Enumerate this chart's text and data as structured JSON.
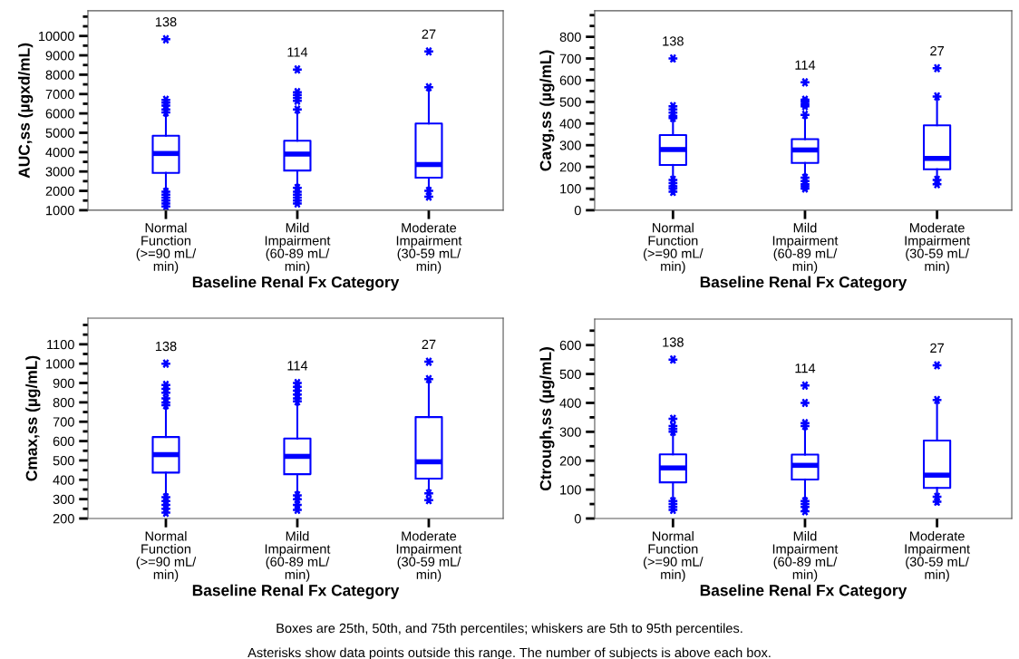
{
  "chart_data": [
    {
      "type": "box",
      "ylabel": "AUC,ss (µgxd/mL)",
      "xlabel": "Baseline Renal Fx Category",
      "categories": [
        "Normal\nFunction\n(>=90 mL/\nmin)",
        "Mild\nImpairment\n(60-89 mL/\nmin)",
        "Moderate\nImpairment\n(30-59 mL/\nmin)"
      ],
      "color": "#0000ff",
      "marker": "star",
      "grid": false,
      "ylim": [
        1000,
        11300
      ],
      "yticks": [
        1000,
        2000,
        3000,
        4000,
        5000,
        6000,
        7000,
        8000,
        9000,
        10000
      ],
      "boxes": [
        {
          "low": 2100,
          "q1": 2930,
          "median": 3930,
          "q3": 4850,
          "high": 5900,
          "outliers": [
            9830,
            6700,
            6550,
            6400,
            6200,
            6050,
            1950,
            1800,
            1650,
            1500,
            1350,
            1200
          ]
        },
        {
          "low": 2250,
          "q1": 3050,
          "median": 3900,
          "q3": 4590,
          "high": 6000,
          "outliers": [
            8270,
            7100,
            6950,
            6800,
            6650,
            6200,
            2150,
            1950,
            1800,
            1650,
            1500,
            1350
          ]
        },
        {
          "low": 2100,
          "q1": 2680,
          "median": 3360,
          "q3": 5480,
          "high": 7300,
          "outliers": [
            9200,
            7350,
            2000,
            1700
          ]
        }
      ],
      "annotations": [
        "138",
        "114",
        "27"
      ]
    },
    {
      "type": "box",
      "ylabel": "Cavg,ss (µg/mL)",
      "xlabel": "Baseline Renal Fx Category",
      "categories": [
        "Normal\nFunction\n(>=90 mL/\nmin)",
        "Mild\nImpairment\n(60-89 mL/\nmin)",
        "Moderate\nImpairment\n(30-59 mL/\nmin)"
      ],
      "color": "#0000ff",
      "marker": "star",
      "grid": false,
      "ylim": [
        0,
        920
      ],
      "yticks": [
        0,
        100,
        200,
        300,
        400,
        500,
        600,
        700,
        800
      ],
      "boxes": [
        {
          "low": 145,
          "q1": 209,
          "median": 280,
          "q3": 347,
          "high": 420,
          "outliers": [
            700,
            480,
            465,
            450,
            435,
            425,
            140,
            125,
            110,
            100,
            85
          ]
        },
        {
          "low": 160,
          "q1": 218,
          "median": 278,
          "q3": 328,
          "high": 435,
          "outliers": [
            590,
            510,
            500,
            490,
            480,
            440,
            150,
            135,
            120,
            110,
            100
          ]
        },
        {
          "low": 150,
          "q1": 189,
          "median": 239,
          "q3": 392,
          "high": 520,
          "outliers": [
            655,
            525,
            140,
            120
          ]
        }
      ],
      "annotations": [
        "138",
        "114",
        "27"
      ]
    },
    {
      "type": "box",
      "ylabel": "Cmax,ss (µg/mL)",
      "xlabel": "Baseline Renal Fx Category",
      "categories": [
        "Normal\nFunction\n(>=90 mL/\nmin)",
        "Mild\nImpairment\n(60-89 mL/\nmin)",
        "Moderate\nImpairment\n(30-59 mL/\nmin)"
      ],
      "color": "#0000ff",
      "marker": "star",
      "grid": false,
      "ylim": [
        200,
        1235
      ],
      "yticks": [
        200,
        300,
        400,
        500,
        600,
        700,
        800,
        900,
        1000,
        1100
      ],
      "boxes": [
        {
          "low": 325,
          "q1": 437,
          "median": 530,
          "q3": 621,
          "high": 780,
          "outliers": [
            1000,
            890,
            870,
            850,
            820,
            800,
            785,
            310,
            290,
            270,
            250,
            230
          ]
        },
        {
          "low": 330,
          "q1": 429,
          "median": 521,
          "q3": 613,
          "high": 800,
          "outliers": [
            900,
            880,
            860,
            840,
            820,
            805,
            320,
            300,
            270,
            245
          ]
        },
        {
          "low": 350,
          "q1": 406,
          "median": 493,
          "q3": 724,
          "high": 915,
          "outliers": [
            1010,
            920,
            330,
            295
          ]
        }
      ],
      "annotations": [
        "138",
        "114",
        "27"
      ]
    },
    {
      "type": "box",
      "ylabel": "Ctrough,ss (µg/mL)",
      "xlabel": "Baseline Renal Fx Category",
      "categories": [
        "Normal\nFunction\n(>=90 mL/\nmin)",
        "Mild\nImpairment\n(60-89 mL/\nmin)",
        "Moderate\nImpairment\n(30-59 mL/\nmin)"
      ],
      "color": "#0000ff",
      "marker": "star",
      "grid": false,
      "ylim": [
        0,
        690
      ],
      "yticks": [
        0,
        100,
        200,
        300,
        400,
        500,
        600
      ],
      "boxes": [
        {
          "low": 70,
          "q1": 125,
          "median": 175,
          "q3": 222,
          "high": 300,
          "outliers": [
            550,
            345,
            320,
            310,
            300,
            60,
            50,
            40,
            30
          ]
        },
        {
          "low": 70,
          "q1": 135,
          "median": 184,
          "q3": 221,
          "high": 315,
          "outliers": [
            460,
            400,
            330,
            320,
            60,
            50,
            40,
            25
          ]
        },
        {
          "low": 80,
          "q1": 106,
          "median": 150,
          "q3": 270,
          "high": 410,
          "outliers": [
            530,
            410,
            75,
            58
          ]
        }
      ],
      "annotations": [
        "138",
        "114",
        "27",
        "Boxes are 25th, 50th, and 75th percentiles; whiskers are 5th to 95th percentiles.",
        "Asterisks show data points outside this range. The number of subjects is above each box."
      ]
    }
  ]
}
